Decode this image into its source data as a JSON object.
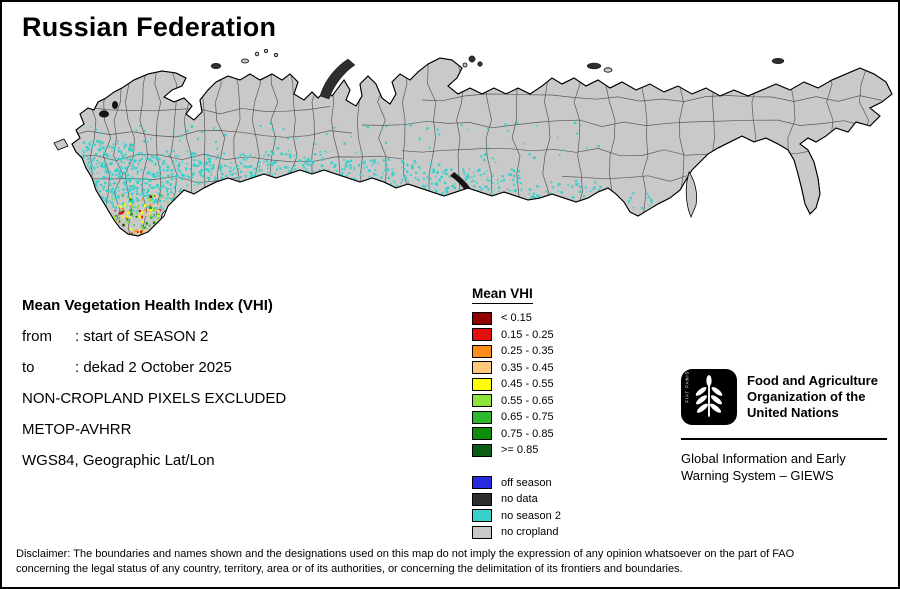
{
  "title": "Russian Federation",
  "info": {
    "heading": "Mean Vegetation Health Index (VHI)",
    "details": [
      {
        "label": "from",
        "value": "start of SEASON 2"
      },
      {
        "label": "to",
        "value": "dekad 2 October 2025"
      },
      {
        "label": "",
        "value": "NON-CROPLAND PIXELS EXCLUDED"
      },
      {
        "label": "",
        "value": "METOP-AVHRR"
      },
      {
        "label": "",
        "value": "WGS84, Geographic Lat/Lon"
      }
    ]
  },
  "legend": {
    "title": "Mean VHI",
    "classes": [
      {
        "label": "< 0.15",
        "color": "#8f0000"
      },
      {
        "label": "0.15 - 0.25",
        "color": "#e31010"
      },
      {
        "label": "0.25 - 0.35",
        "color": "#ff8c1a"
      },
      {
        "label": "0.35 - 0.45",
        "color": "#ffc87d"
      },
      {
        "label": "0.45 - 0.55",
        "color": "#ffff00"
      },
      {
        "label": "0.55 - 0.65",
        "color": "#8de33c"
      },
      {
        "label": "0.65 - 0.75",
        "color": "#2eb82e"
      },
      {
        "label": "0.75 - 0.85",
        "color": "#0e8c0e"
      },
      {
        "label": ">= 0.85",
        "color": "#0a5c16"
      }
    ],
    "special": [
      {
        "label": "off season",
        "color": "#2929e0"
      },
      {
        "label": "no data",
        "color": "#2e2e2e"
      },
      {
        "label": "no season 2",
        "color": "#35d1ca"
      },
      {
        "label": "no cropland",
        "color": "#c9c9c9"
      }
    ]
  },
  "map": {
    "land_color": "#c9c9c9",
    "no_data_color": "#2e2e2e",
    "boundary_color": "#4d4d4d"
  },
  "fao": {
    "motto": "FIAT PANIS",
    "org_lines": [
      "Food and Agriculture",
      "Organization of the",
      "United Nations"
    ],
    "giews_lines": [
      "Global Information and Early",
      "Warning System – GIEWS"
    ]
  },
  "disclaimer_lines": [
    "Disclaimer: The boundaries and names shown and the designations used on this map do not imply the expression of any opinion whatsoever on the part of FAO",
    "concerning the legal status of any country, territory, area or of its authorities, or concerning the delimitation of its frontiers and boundaries."
  ]
}
